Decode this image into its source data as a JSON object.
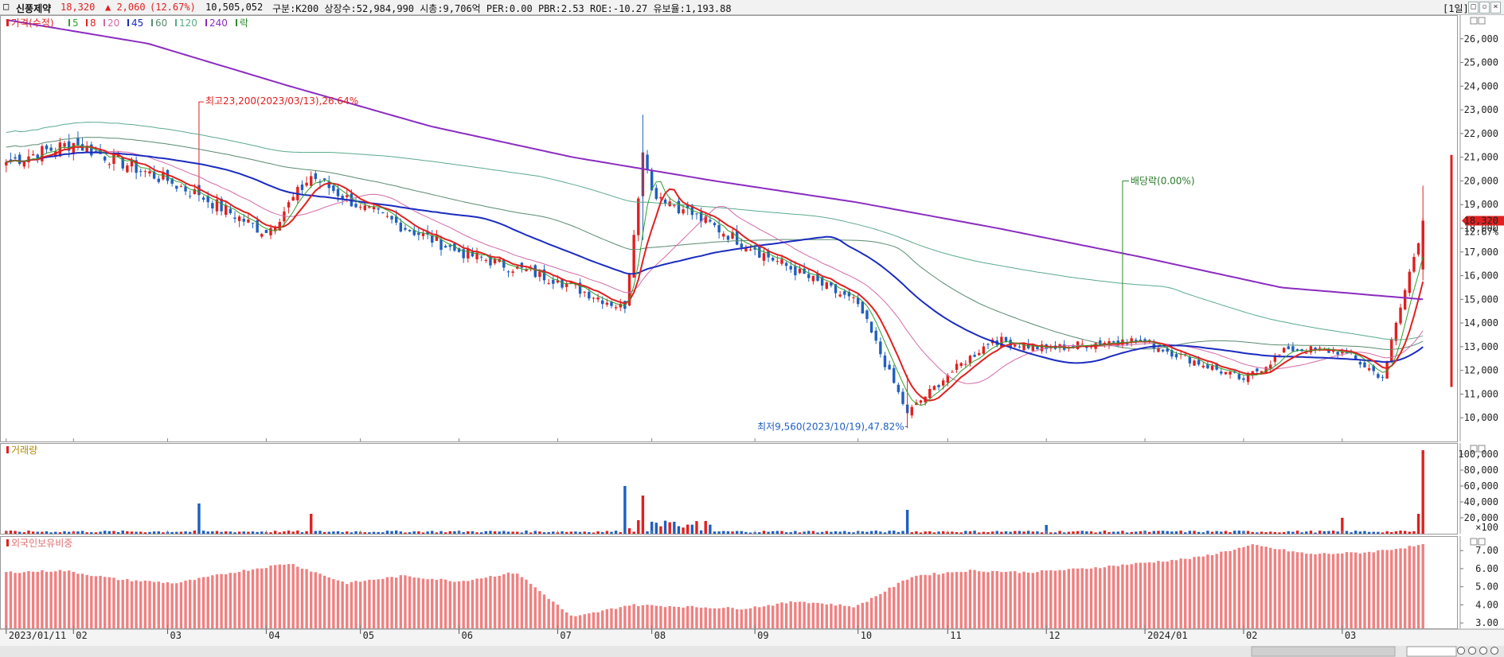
{
  "header": {
    "stock_name": "신풍제약",
    "price": "18,320",
    "change": "▲ 2,060",
    "change_pct": "(12.67%)",
    "volume": "10,505,052",
    "info": "구분:K200 상장수:52,984,990 시총:9,706억 PER:0.00 PBR:2.53 ROE:-10.27 유보율:1,193.88",
    "period": "[1일]"
  },
  "legend": {
    "price_label": "가격(수정)",
    "ma": [
      {
        "label": "5",
        "color": "#2e9e2e"
      },
      {
        "label": "8",
        "color": "#e02020"
      },
      {
        "label": "20",
        "color": "#d36aa8"
      },
      {
        "label": "45",
        "color": "#1a2bbf"
      },
      {
        "label": "60",
        "color": "#5a8a6f"
      },
      {
        "label": "120",
        "color": "#5aaa8a"
      },
      {
        "label": "240",
        "color": "#8a2bc0"
      }
    ],
    "drop_label": "락",
    "volume_label": "거래량",
    "foreign_label": "외국인보유비중"
  },
  "colors": {
    "up": "#e02020",
    "down": "#1f5fbf",
    "foreign_bar": "#f08080",
    "price_tag": "#e02020"
  },
  "annotations": {
    "high": "최고23,200(2023/03/13),26.64%",
    "low": "최저9,560(2023/10/19),47.82%",
    "dividend": "배당락(0.00%)",
    "price_tag": "18,320",
    "pct_tag": "12.67%"
  },
  "chart_data": [
    {
      "type": "candlestick",
      "title": "가격(수정)",
      "ylim": [
        9000,
        27000
      ],
      "y_ticks": [
        "26,000",
        "25,000",
        "24,000",
        "23,000",
        "22,000",
        "21,000",
        "20,000",
        "19,000",
        "18,000",
        "17,000",
        "16,000",
        "15,000",
        "14,000",
        "13,000",
        "12,000",
        "11,000",
        "10,000"
      ],
      "x_ticks": [
        "2023/01/11",
        "02",
        "03",
        "04",
        "05",
        "06",
        "07",
        "08",
        "09",
        "10",
        "11",
        "12",
        "2024/01",
        "02",
        "03"
      ],
      "anchors": {
        "dates": [
          "2023-01-11",
          "2023-02-01",
          "2023-03-02",
          "2023-03-13",
          "2023-04-03",
          "2023-04-17",
          "2023-05-02",
          "2023-06-01",
          "2023-07-03",
          "2023-07-24",
          "2023-07-28",
          "2023-08-01",
          "2023-08-10",
          "2023-09-01",
          "2023-10-04",
          "2023-10-19",
          "2023-11-01",
          "2023-11-15",
          "2023-12-01",
          "2023-12-26",
          "2024-01-02",
          "2024-02-01",
          "2024-02-15",
          "2024-03-04",
          "2024-03-15",
          "2024-03-28"
        ],
        "close": [
          20800,
          21600,
          20000,
          19400,
          17800,
          20200,
          18900,
          17000,
          15800,
          14600,
          21200,
          19600,
          18800,
          17100,
          14800,
          10200,
          11800,
          13300,
          12900,
          13300,
          13200,
          11600,
          12900,
          12800,
          11700,
          18320
        ]
      },
      "ma_240_anchors": [
        26800,
        25800,
        24000,
        22300,
        21000,
        20000,
        19100,
        18000,
        16800,
        15500,
        15000
      ]
    },
    {
      "type": "bar",
      "title": "거래량",
      "ylabel_unit": "×100",
      "y_ticks": [
        "100,000",
        "80,000",
        "60,000",
        "40,000",
        "20,000"
      ],
      "ylim": [
        0,
        110000
      ],
      "spikes": [
        {
          "date": "2023-03-13",
          "value": 38000
        },
        {
          "date": "2023-04-17",
          "value": 25000
        },
        {
          "date": "2023-07-24",
          "value": 60000
        },
        {
          "date": "2023-07-28",
          "value": 48000
        },
        {
          "date": "2023-10-19",
          "value": 30000
        },
        {
          "date": "2023-12-01",
          "value": 11000
        },
        {
          "date": "2024-03-04",
          "value": 20000
        },
        {
          "date": "2024-03-27",
          "value": 25000
        },
        {
          "date": "2024-03-28",
          "value": 105000
        }
      ]
    },
    {
      "type": "bar",
      "title": "외국인보유비중",
      "y_ticks": [
        "7.00",
        "6.00",
        "5.00",
        "4.00",
        "3.00"
      ],
      "ylim": [
        2.7,
        7.8
      ],
      "anchors": [
        5.8,
        5.9,
        5.4,
        5.2,
        5.8,
        6.3,
        5.2,
        5.6,
        5.3,
        5.8,
        3.3,
        4.0,
        3.9,
        3.8,
        4.2,
        3.9,
        5.6,
        5.9,
        5.8,
        6.0,
        6.3,
        6.6,
        7.3,
        6.8,
        6.9,
        7.3
      ]
    }
  ]
}
